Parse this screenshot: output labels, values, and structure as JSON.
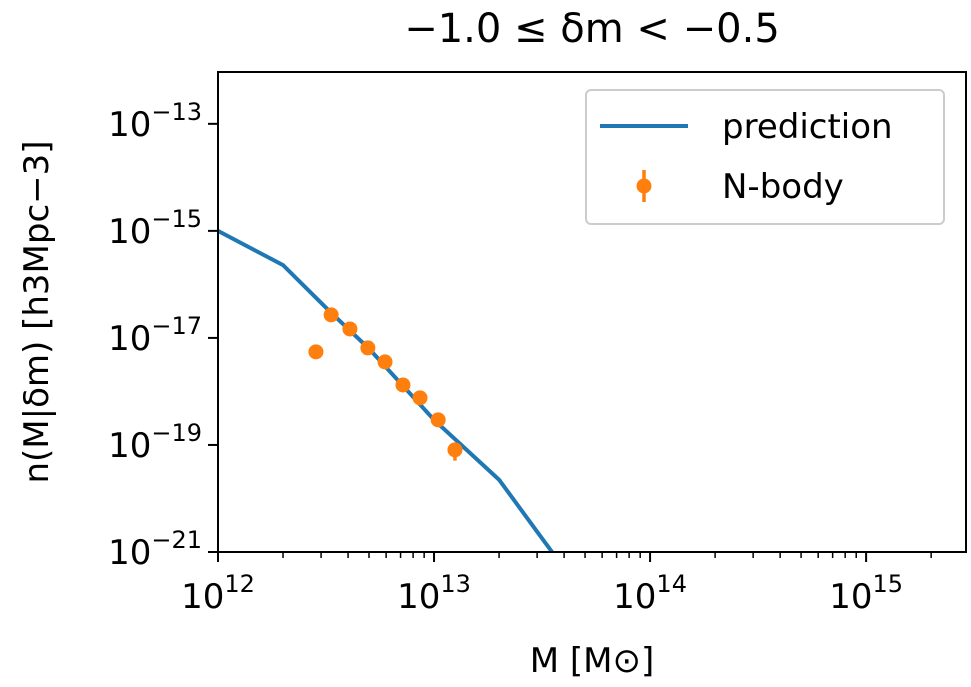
{
  "chart_data": {
    "type": "line",
    "title": "−1.0 ≤ δm < −0.5",
    "xlabel": "M [M⊙]",
    "ylabel": "n(M|δm) [h3Mpc−3]",
    "xscale": "log",
    "yscale": "log",
    "xlim": [
      1000000000000.0,
      2900000000000000.0
    ],
    "ylim": [
      1e-21,
      9.3e-13
    ],
    "xticks": [
      {
        "value": 1000000000000.0,
        "label": "10",
        "sup": "12"
      },
      {
        "value": 10000000000000.0,
        "label": "10",
        "sup": "13"
      },
      {
        "value": 100000000000000.0,
        "label": "10",
        "sup": "14"
      },
      {
        "value": 1000000000000000.0,
        "label": "10",
        "sup": "15"
      }
    ],
    "yticks": [
      {
        "value": 1e-21,
        "label": "10",
        "sup": "−21"
      },
      {
        "value": 1e-19,
        "label": "10",
        "sup": "−19"
      },
      {
        "value": 1e-17,
        "label": "10",
        "sup": "−17"
      },
      {
        "value": 1e-15,
        "label": "10",
        "sup": "−15"
      },
      {
        "value": 1e-13,
        "label": "10",
        "sup": "−13"
      }
    ],
    "legend": "upper right",
    "series": [
      {
        "name": "prediction",
        "kind": "line",
        "color": "#1f77b4",
        "x": [
          1000000000000.0,
          2000000000000.0,
          3300000000000.0,
          5000000000000.0,
          10000000000000.0,
          20000000000000.0,
          30000000000000.0,
          35200000000000.0
        ],
        "values": [
          1e-15,
          2.29e-16,
          3.09e-17,
          6.3e-18,
          2.95e-19,
          2.24e-20,
          2.4e-21,
          1e-21
        ]
      },
      {
        "name": "N-body",
        "kind": "errorbar",
        "color": "#ff7f0e",
        "x": [
          2840000000000.0,
          3340000000000.0,
          4080000000000.0,
          4940000000000.0,
          5930000000000.0,
          7180000000000.0,
          8610000000000.0,
          10450000000000.0,
          12500000000000.0
        ],
        "values": [
          5.5e-18,
          2.7e-17,
          1.47e-17,
          6.5e-18,
          3.56e-18,
          1.32e-18,
          7.6e-19,
          2.95e-19,
          8.1e-20
        ],
        "errors": [
          null,
          null,
          null,
          null,
          null,
          null,
          null,
          null,
          3e-20
        ]
      }
    ]
  }
}
